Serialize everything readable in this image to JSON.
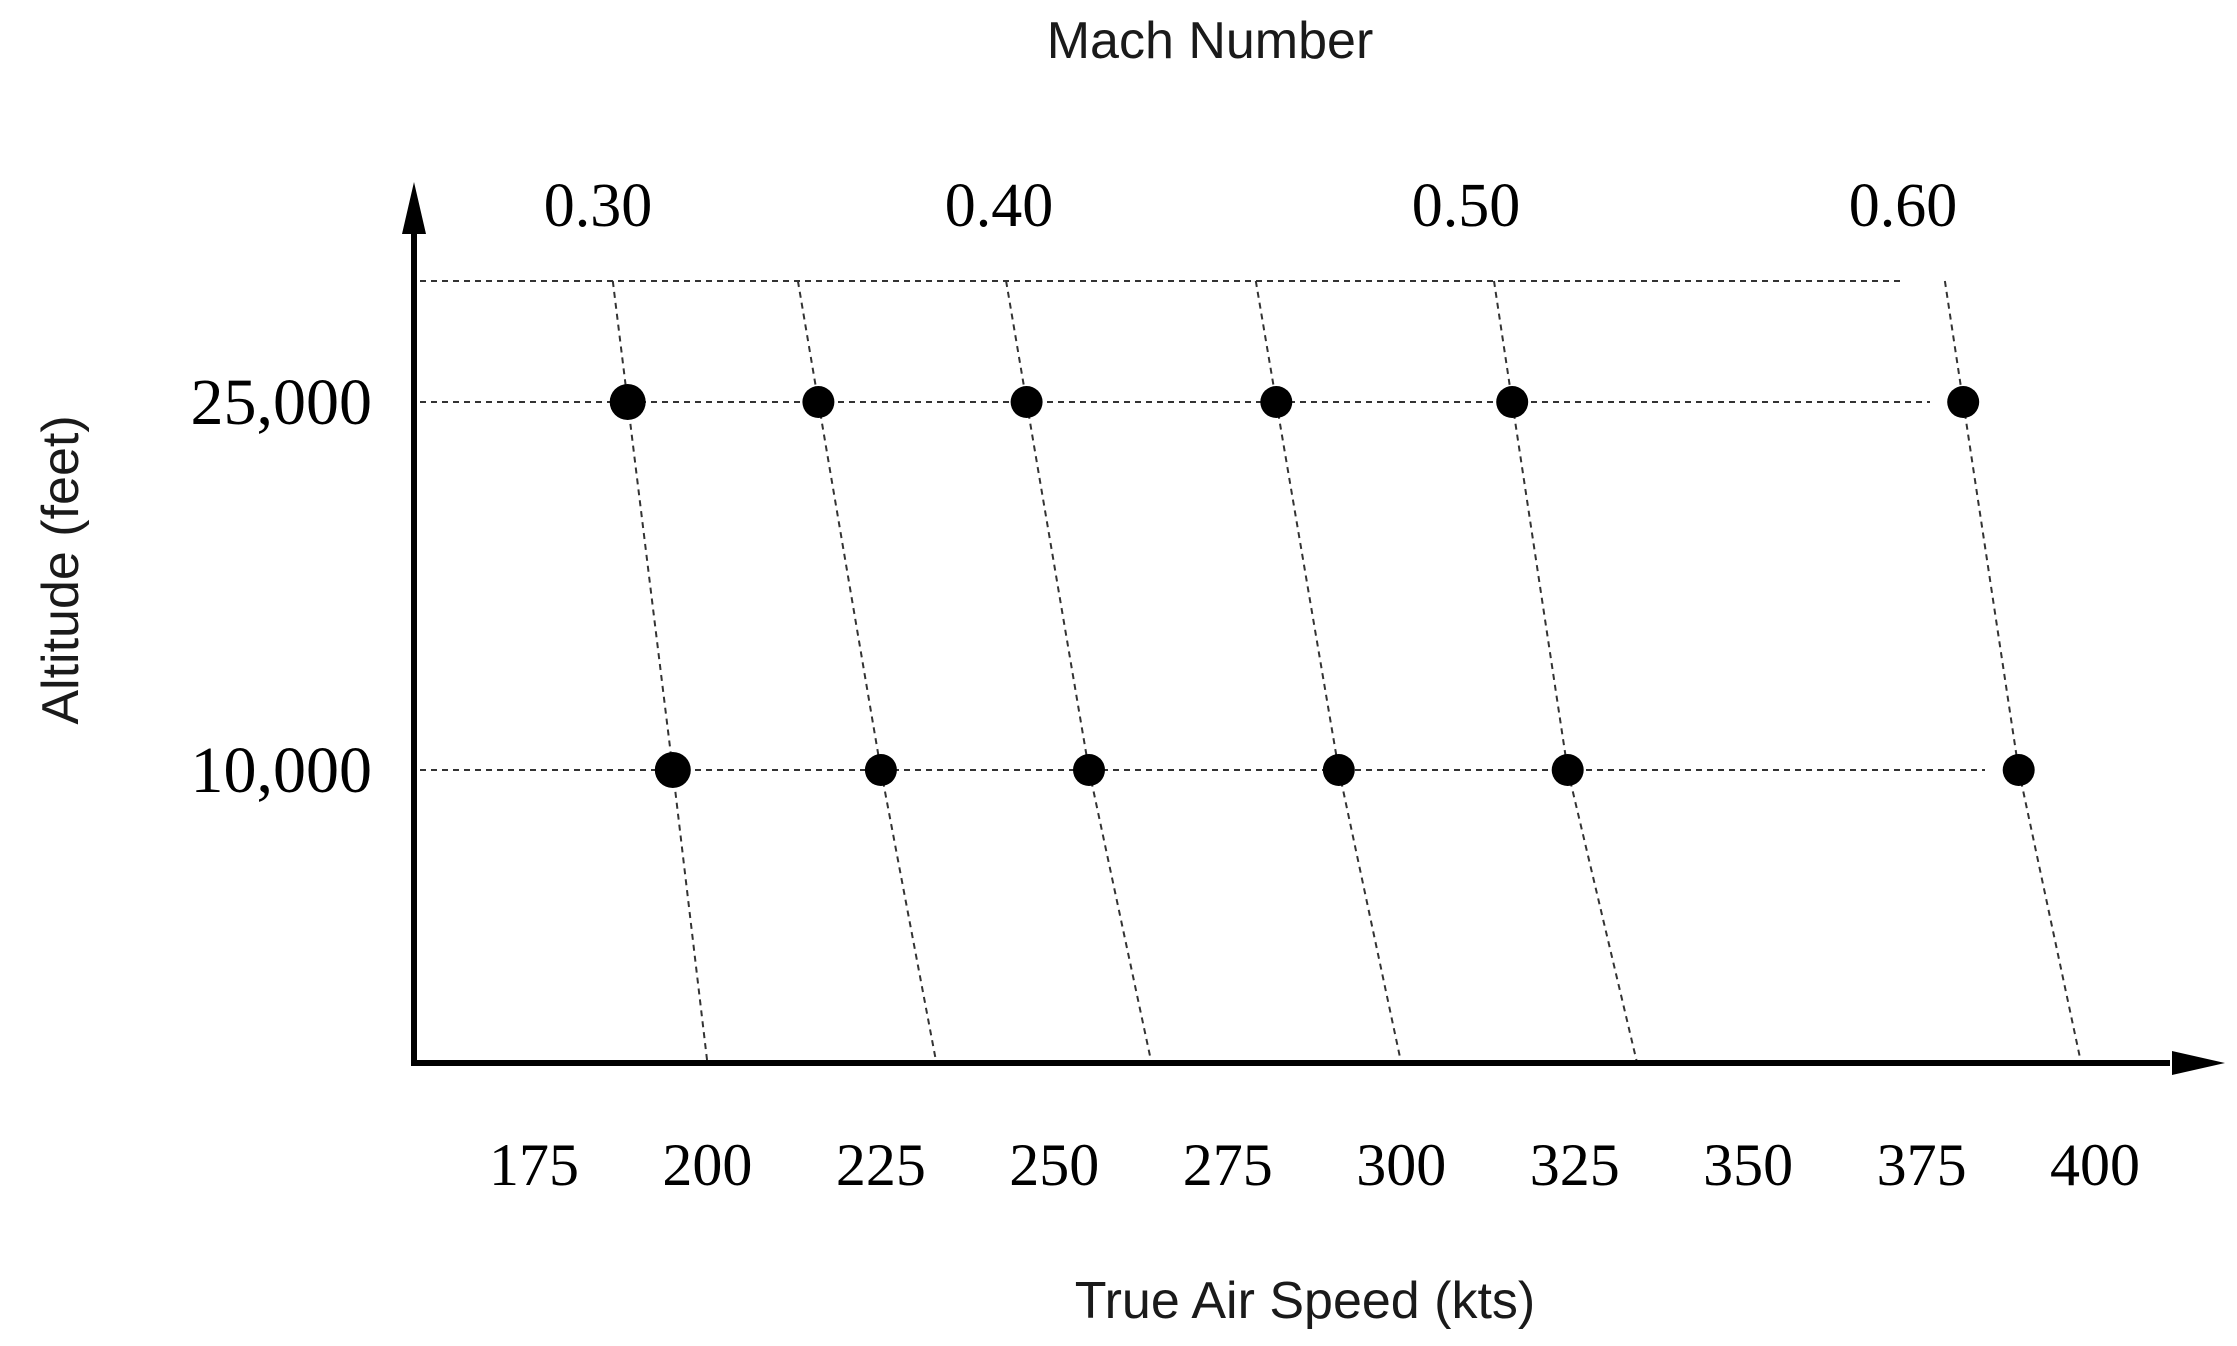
{
  "chart_data": {
    "type": "scatter",
    "title": "",
    "top_axis_label": "Mach Number",
    "top_ticks": [
      "0.30",
      "0.40",
      "0.50",
      "0.60"
    ],
    "xlabel": "True Air Speed (kts)",
    "ylabel": "Altitude (feet)",
    "x_ticks": [
      "175",
      "200",
      "225",
      "250",
      "275",
      "300",
      "325",
      "350",
      "375",
      "400"
    ],
    "y_ticks": [
      "25,000",
      "10,000"
    ],
    "grid": "dashed guide lines",
    "series": [
      {
        "altitude": 25000,
        "x": [
          188.5,
          216,
          246,
          282,
          316,
          381
        ]
      },
      {
        "altitude": 10000,
        "x": [
          195,
          225,
          255,
          291,
          324,
          389
        ]
      }
    ],
    "mach_lines": [
      {
        "x_at_bottom": 200
      },
      {
        "x_at_bottom": 233
      },
      {
        "x_at_bottom": 264
      },
      {
        "x_at_bottom": 300
      },
      {
        "x_at_bottom": 334
      },
      {
        "x_at_bottom": 398
      }
    ]
  }
}
